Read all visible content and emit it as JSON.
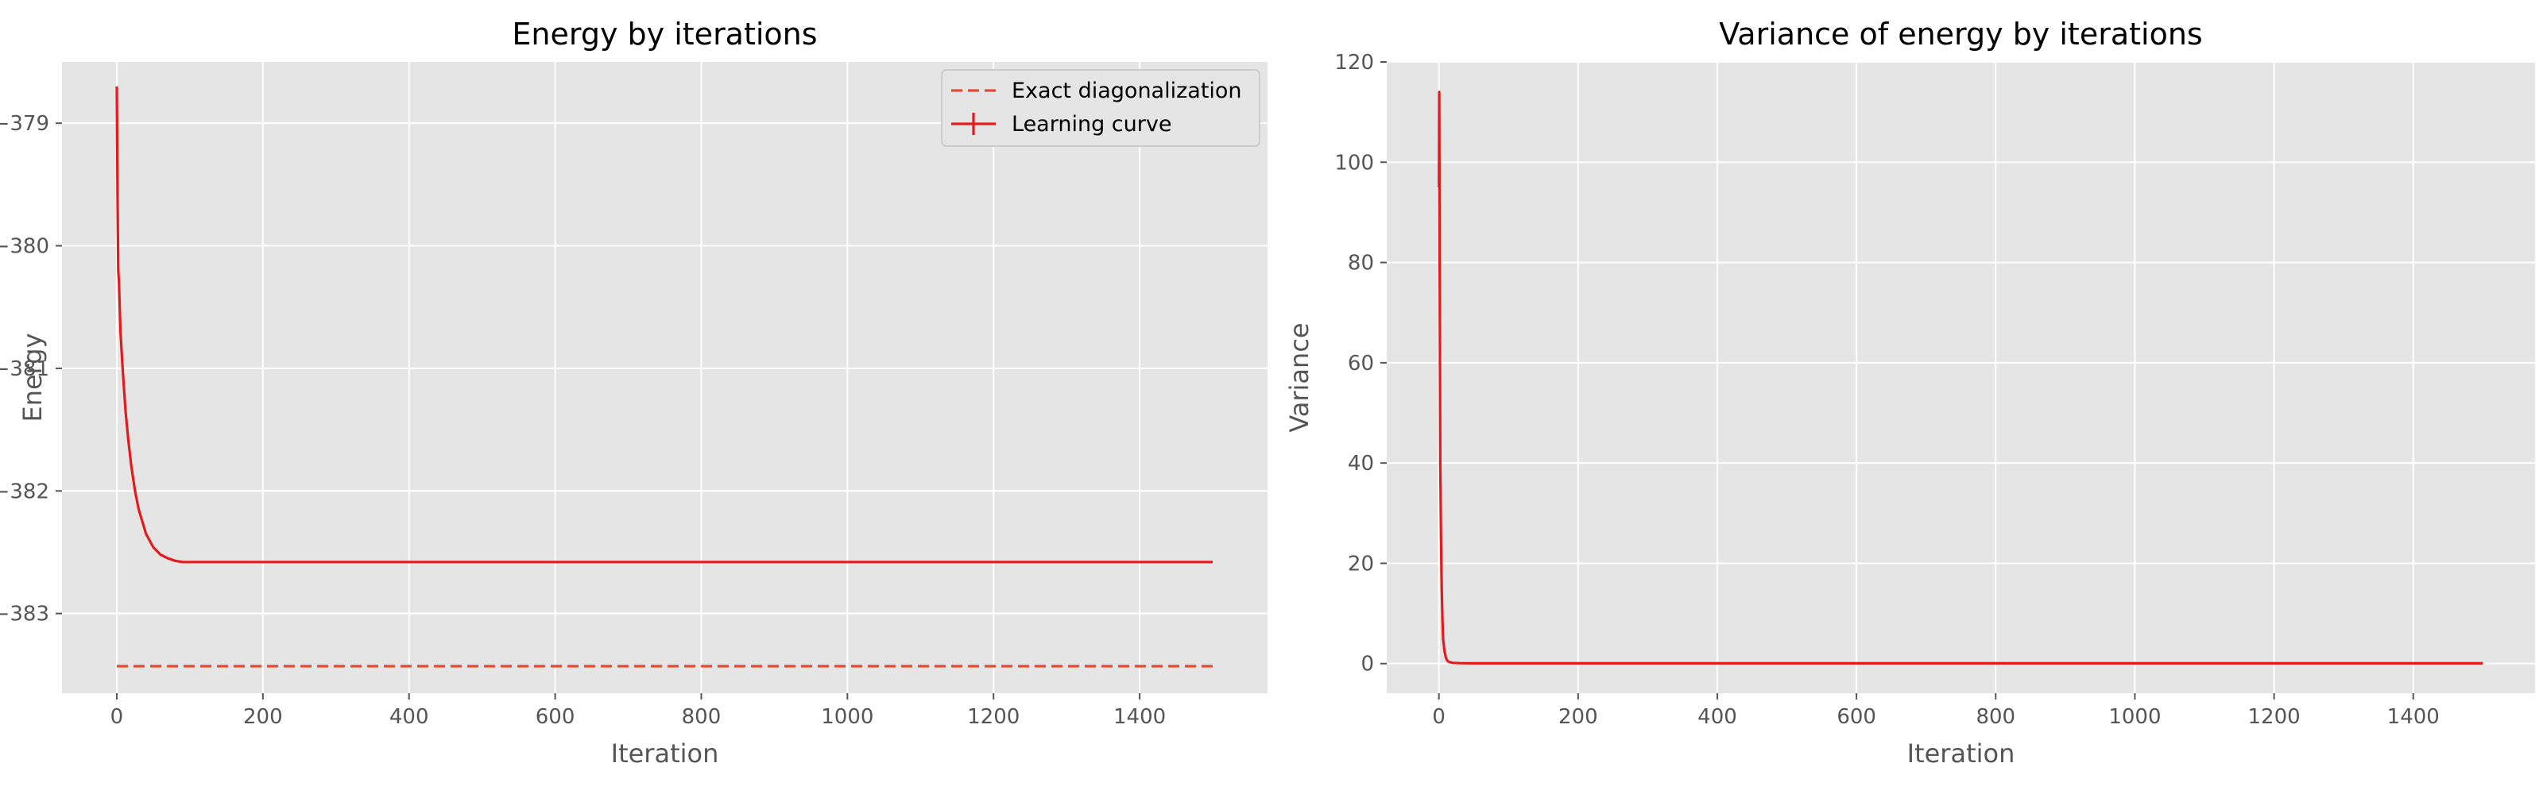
{
  "colors": {
    "plot_background": "#E5E5E5",
    "grid": "#FFFFFF",
    "series": "#E41A1C",
    "reference": "#E24A33"
  },
  "chart_data": [
    {
      "type": "line",
      "title": "Energy by iterations",
      "xlabel": "Iteration",
      "ylabel": "Energy",
      "xlim": [
        -75,
        1575
      ],
      "ylim": [
        -383.65,
        -378.5
      ],
      "xticks": [
        0,
        200,
        400,
        600,
        800,
        1000,
        1200,
        1400
      ],
      "yticks": [
        -383,
        -382,
        -381,
        -380,
        -379
      ],
      "xtick_labels": [
        "0",
        "200",
        "400",
        "600",
        "800",
        "1000",
        "1200",
        "1400"
      ],
      "ytick_labels": [
        "−383",
        "−382",
        "−381",
        "−380",
        "−379"
      ],
      "grid": true,
      "legend": {
        "placement": "top-right",
        "entries": [
          "Exact diagonalization",
          "Learning curve"
        ]
      },
      "series": [
        {
          "name": "Exact diagonalization",
          "style": "dashed",
          "x": [
            0,
            1500
          ],
          "y": [
            -383.43,
            -383.43
          ]
        },
        {
          "name": "Learning curve",
          "style": "solid",
          "x": [
            0,
            1,
            2,
            3,
            5,
            8,
            12,
            16,
            20,
            25,
            30,
            40,
            50,
            60,
            70,
            80,
            90,
            100,
            120,
            150,
            200,
            300,
            400,
            500,
            600,
            700,
            800,
            900,
            1000,
            1100,
            1200,
            1300,
            1400,
            1500
          ],
          "y": [
            -378.7,
            -379.6,
            -380.2,
            -380.3,
            -380.7,
            -381.0,
            -381.35,
            -381.6,
            -381.8,
            -382.0,
            -382.15,
            -382.35,
            -382.46,
            -382.52,
            -382.55,
            -382.57,
            -382.58,
            -382.58,
            -382.58,
            -382.58,
            -382.58,
            -382.58,
            -382.58,
            -382.58,
            -382.58,
            -382.58,
            -382.58,
            -382.58,
            -382.58,
            -382.58,
            -382.58,
            -382.58,
            -382.58,
            -382.58
          ]
        }
      ]
    },
    {
      "type": "line",
      "title": "Variance of energy by iterations",
      "xlabel": "Iteration",
      "ylabel": "Variance",
      "xlim": [
        -75,
        1575
      ],
      "ylim": [
        -5.9,
        120
      ],
      "xticks": [
        0,
        200,
        400,
        600,
        800,
        1000,
        1200,
        1400
      ],
      "yticks": [
        0,
        20,
        40,
        60,
        80,
        100,
        120
      ],
      "xtick_labels": [
        "0",
        "200",
        "400",
        "600",
        "800",
        "1000",
        "1200",
        "1400"
      ],
      "ytick_labels": [
        "0",
        "20",
        "40",
        "60",
        "80",
        "100",
        "120"
      ],
      "grid": true,
      "series": [
        {
          "style": "solid",
          "x": [
            0,
            0.5,
            1,
            1.5,
            2,
            3,
            4,
            5,
            6,
            8,
            10,
            12,
            15,
            20,
            30,
            50,
            100,
            200,
            500,
            1000,
            1500
          ],
          "y": [
            95,
            114,
            80,
            60,
            40,
            25,
            15,
            9,
            5,
            2.5,
            1.2,
            0.6,
            0.3,
            0.15,
            0.08,
            0.05,
            0.05,
            0.05,
            0.05,
            0.05,
            0.05
          ]
        }
      ]
    }
  ]
}
